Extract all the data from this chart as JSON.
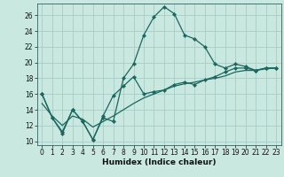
{
  "xlabel": "Humidex (Indice chaleur)",
  "background_color": "#c8e8e0",
  "grid_color": "#a8ccc8",
  "line_color": "#1a6860",
  "xlim": [
    -0.5,
    23.5
  ],
  "ylim": [
    9.5,
    27.5
  ],
  "x_ticks": [
    0,
    1,
    2,
    3,
    4,
    5,
    6,
    7,
    8,
    9,
    10,
    11,
    12,
    13,
    14,
    15,
    16,
    17,
    18,
    19,
    20,
    21,
    22,
    23
  ],
  "y_ticks": [
    10,
    12,
    14,
    16,
    18,
    20,
    22,
    24,
    26
  ],
  "line1_x": [
    0,
    1,
    2,
    3,
    4,
    5,
    6,
    7,
    8,
    9,
    10,
    11,
    12,
    13,
    14,
    15,
    16,
    17,
    18,
    19,
    20,
    21,
    22,
    23
  ],
  "line1_y": [
    16,
    13,
    11,
    14,
    12.5,
    10.2,
    13,
    12.5,
    18,
    19.8,
    23.5,
    25.8,
    27.1,
    26.2,
    23.5,
    23,
    22,
    19.8,
    19.3,
    19.8,
    19.5,
    19,
    19.3,
    19.3
  ],
  "line2_x": [
    0,
    1,
    2,
    3,
    4,
    5,
    6,
    7,
    8,
    9,
    10,
    11,
    12,
    13,
    14,
    15,
    16,
    17,
    18,
    19,
    20,
    21,
    22,
    23
  ],
  "line2_y": [
    16,
    13,
    11.2,
    14,
    12.5,
    10.2,
    13.2,
    15.8,
    17,
    18.2,
    16,
    16.3,
    16.5,
    17.2,
    17.5,
    17.2,
    17.8,
    18.2,
    18.8,
    19.3,
    19.3,
    19,
    19.3,
    19.3
  ],
  "line3_x": [
    0,
    1,
    2,
    3,
    4,
    5,
    6,
    7,
    8,
    9,
    10,
    11,
    12,
    13,
    14,
    15,
    16,
    17,
    18,
    19,
    20,
    21,
    22,
    23
  ],
  "line3_y": [
    14.8,
    13.2,
    12.0,
    13.2,
    12.8,
    11.8,
    12.5,
    13.2,
    14.0,
    14.8,
    15.5,
    16.0,
    16.5,
    17.0,
    17.3,
    17.5,
    17.8,
    18.0,
    18.3,
    18.8,
    19.0,
    19.0,
    19.2,
    19.3
  ]
}
